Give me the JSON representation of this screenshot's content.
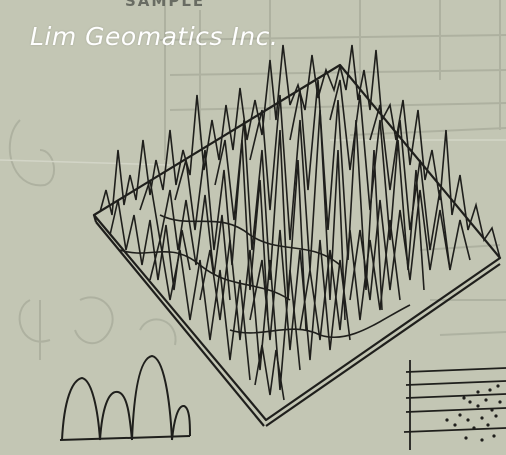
{
  "image": {
    "watermark_text": "Lim Geomatics Inc.",
    "faint_top_text": "SAMPLE",
    "colors": {
      "paper": "#c3c6b4",
      "ink": "#1f1f1c",
      "faint_ink": "#a9ad9c",
      "watermark": "#ffffff"
    }
  }
}
